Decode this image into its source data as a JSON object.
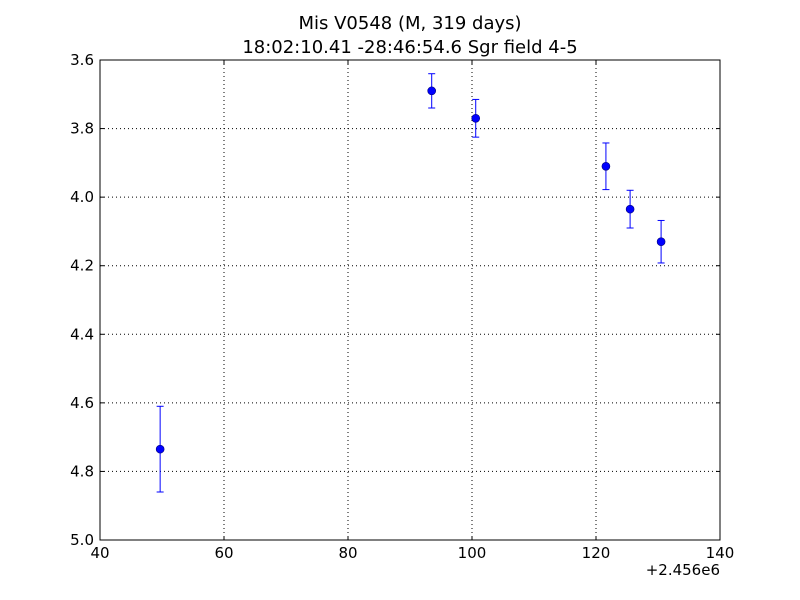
{
  "chart_data": {
    "type": "scatter",
    "title_line1": "Mis V0548 (M, 319 days)",
    "title_line2": "18:02:10.41 -28:46:54.6 Sgr field 4-5",
    "xlabel": "",
    "ylabel": "",
    "x_offset_label": "+2.456e6",
    "xlim": [
      40,
      140
    ],
    "ylim": [
      3.6,
      5.0
    ],
    "y_inverted": true,
    "x_ticks": [
      40,
      60,
      80,
      100,
      120,
      140
    ],
    "x_tick_labels": [
      "40",
      "60",
      "80",
      "100",
      "120",
      "140"
    ],
    "y_ticks": [
      3.6,
      3.8,
      4.0,
      4.2,
      4.4,
      4.6,
      4.8,
      5.0
    ],
    "y_tick_labels": [
      "3.6",
      "3.8",
      "4.0",
      "4.2",
      "4.4",
      "4.6",
      "4.8",
      "5.0"
    ],
    "grid": true,
    "marker_color": "#0000ff",
    "points": [
      {
        "x": 49.7,
        "y": 4.735,
        "err": 0.125
      },
      {
        "x": 93.5,
        "y": 3.69,
        "err": 0.05
      },
      {
        "x": 100.6,
        "y": 3.77,
        "err": 0.055
      },
      {
        "x": 121.6,
        "y": 3.91,
        "err": 0.068
      },
      {
        "x": 125.5,
        "y": 4.035,
        "err": 0.055
      },
      {
        "x": 130.5,
        "y": 4.13,
        "err": 0.062
      }
    ]
  }
}
